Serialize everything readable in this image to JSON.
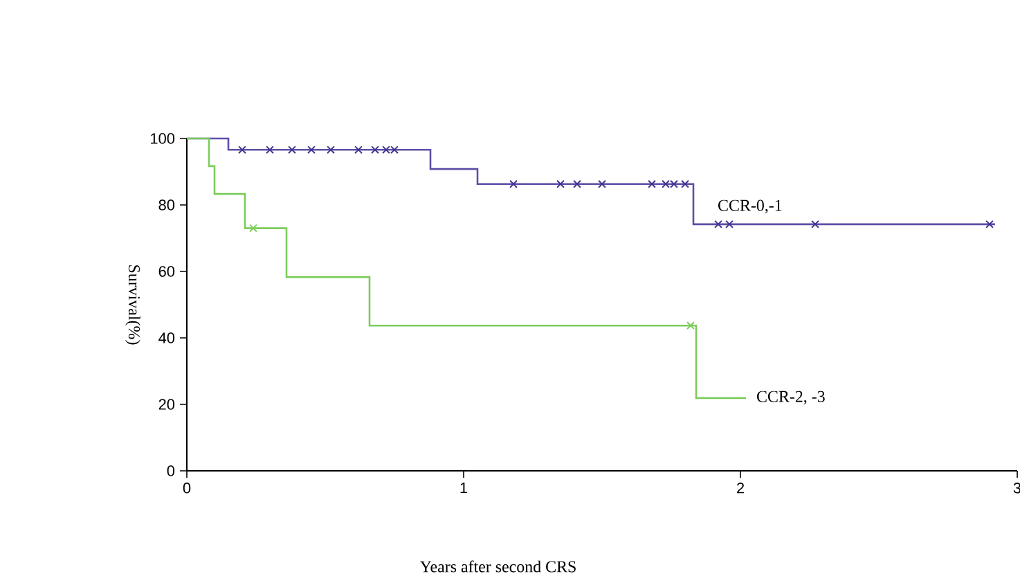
{
  "chart_data": {
    "type": "step",
    "xlabel": "Years after second CRS",
    "ylabel": "Survival(%)",
    "xlim": [
      0,
      3
    ],
    "ylim": [
      0,
      100
    ],
    "xticks": [
      0,
      1,
      2,
      3
    ],
    "yticks": [
      0,
      20,
      40,
      60,
      80,
      100
    ],
    "grid": false,
    "series": [
      {
        "name": "CCR-0,-1",
        "color": "#5b4fa8",
        "x": [
          0,
          0.15,
          0.88,
          1.05,
          1.83,
          2.92
        ],
        "values": [
          100,
          96.6,
          90.8,
          86.3,
          74.2,
          74.2
        ]
      },
      {
        "name": "CCR-2, -3",
        "color": "#7ccc5a",
        "x": [
          0,
          0.08,
          0.1,
          0.21,
          0.36,
          0.66,
          1.84,
          2.02
        ],
        "values": [
          100,
          91.7,
          83.3,
          73,
          58.3,
          43.7,
          21.9,
          21.9
        ]
      },
      {
        "color": "#3f3590",
        "type": "scatter",
        "marker": "cross",
        "x": [
          0.2,
          0.3,
          0.38,
          0.45,
          0.52,
          0.62,
          0.68,
          0.72,
          0.75,
          1.18,
          1.35,
          1.41,
          1.5,
          1.68,
          1.73,
          1.76,
          1.8,
          1.92,
          1.96,
          2.27,
          2.9
        ],
        "values": [
          96.6,
          96.6,
          96.6,
          96.6,
          96.6,
          96.6,
          96.6,
          96.6,
          96.6,
          86.3,
          86.3,
          86.3,
          86.3,
          86.3,
          86.3,
          86.3,
          86.3,
          74.2,
          74.2,
          74.2,
          74.2
        ]
      },
      {
        "color": "#7ccc5a",
        "type": "scatter",
        "marker": "cross",
        "x": [
          0.24,
          1.82
        ],
        "values": [
          73,
          43.7
        ]
      }
    ]
  }
}
